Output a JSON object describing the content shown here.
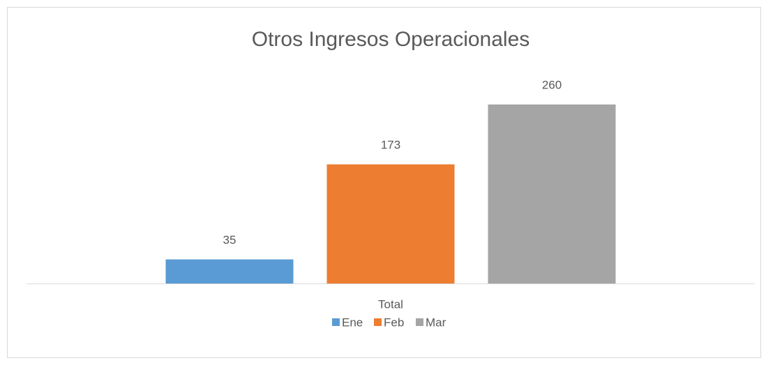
{
  "chart_data": {
    "type": "bar",
    "title": "Otros Ingresos Operacionales",
    "categories": [
      "Total"
    ],
    "series": [
      {
        "name": "Ene",
        "color": "#5b9bd5",
        "values": [
          35
        ]
      },
      {
        "name": "Feb",
        "color": "#ed7d31",
        "values": [
          173
        ]
      },
      {
        "name": "Mar",
        "color": "#a5a5a5",
        "values": [
          260
        ]
      }
    ],
    "legend": "bottom"
  }
}
